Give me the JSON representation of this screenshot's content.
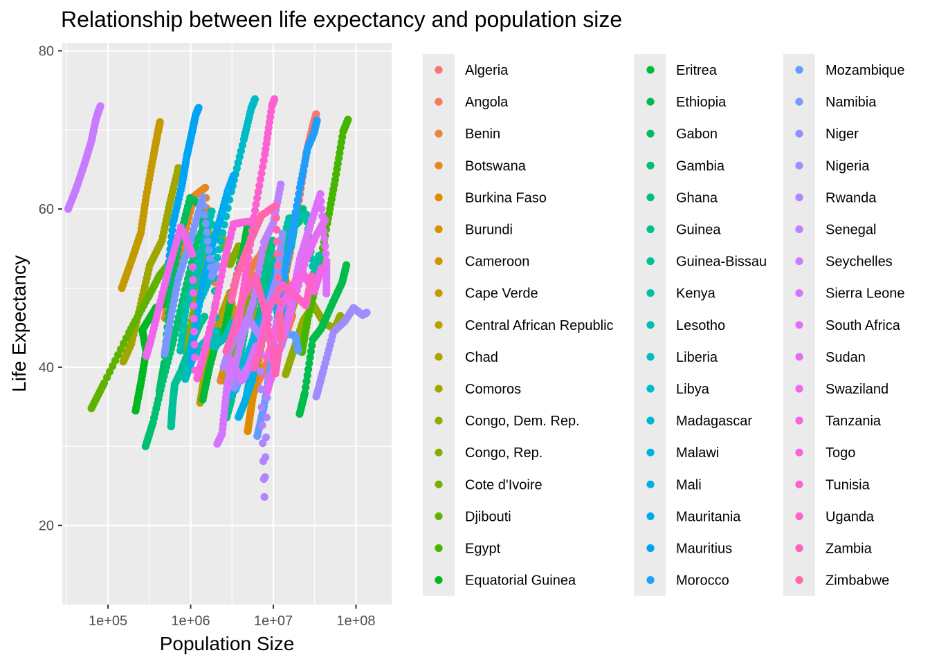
{
  "chart_data": {
    "type": "scatter",
    "title": "Relationship between life expectancy and population size",
    "xlabel": "Population Size",
    "ylabel": "Life Expectancy",
    "x_scale": "log10",
    "xlim": [
      28000,
      270000000
    ],
    "ylim": [
      10,
      81
    ],
    "x_ticks": [
      100000,
      1000000,
      10000000,
      100000000
    ],
    "x_tick_labels": [
      "1e+05",
      "1e+06",
      "1e+07",
      "1e+08"
    ],
    "y_ticks": [
      20,
      40,
      60,
      80
    ],
    "y_tick_labels": [
      "20",
      "40",
      "60",
      "80"
    ],
    "grid": true,
    "legend_position": "right",
    "legend_columns": 3,
    "series": [
      {
        "name": "Algeria",
        "color": "#F8766D",
        "x": [
          11100000,
          13000000,
          16000000,
          20000000,
          25000000,
          30000000,
          33000000
        ],
        "y": [
          47.5,
          50.2,
          54.5,
          60.4,
          67.0,
          70.5,
          72.0
        ]
      },
      {
        "name": "Angola",
        "color": "#F37B59",
        "x": [
          5300000,
          6200000,
          7800000,
          9800000,
          12000000,
          15000000,
          17000000
        ],
        "y": [
          35.9,
          37.5,
          40.0,
          41.8,
          42.5,
          44.9,
          46.5
        ]
      },
      {
        "name": "Benin",
        "color": "#ED8141",
        "x": [
          2300000,
          2600000,
          3300000,
          4300000,
          5600000,
          7000000,
          8700000
        ],
        "y": [
          38.3,
          40.1,
          44.1,
          48.9,
          52.9,
          54.2,
          56.2
        ]
      },
      {
        "name": "Botswana",
        "color": "#E7861B",
        "x": [
          490000,
          560000,
          800000,
          1100000,
          1500000,
          1800000,
          2000000
        ],
        "y": [
          46.2,
          49.2,
          55.7,
          61.6,
          62.7,
          51.0,
          50.7
        ]
      },
      {
        "name": "Burkina Faso",
        "color": "#DF8C00",
        "x": [
          4900000,
          5400000,
          6200000,
          7700000,
          10400000,
          12800000,
          14300000
        ],
        "y": [
          31.9,
          34.9,
          39.0,
          44.6,
          50.3,
          50.6,
          52.3
        ]
      },
      {
        "name": "Burundi",
        "color": "#D89000",
        "x": [
          2400000,
          2700000,
          3400000,
          4100000,
          5600000,
          6300000,
          8400000
        ],
        "y": [
          39.0,
          40.5,
          44.1,
          47.5,
          48.2,
          45.3,
          49.6
        ]
      },
      {
        "name": "Cameroon",
        "color": "#CF9400",
        "x": [
          5000000,
          5800000,
          7400000,
          9300000,
          12500000,
          14800000,
          17700000
        ],
        "y": [
          38.5,
          41.4,
          46.0,
          52.3,
          54.3,
          49.9,
          50.4
        ]
      },
      {
        "name": "Cape Verde",
        "color": "#C49A00",
        "x": [
          147000,
          196000,
          250000,
          290000,
          350000,
          400000,
          426000
        ],
        "y": [
          50.0,
          53.7,
          57.0,
          61.6,
          66.4,
          69.6,
          71.0
        ]
      },
      {
        "name": "Central African Republic",
        "color": "#B99E00",
        "x": [
          1300000,
          1500000,
          1900000,
          2400000,
          3000000,
          3700000,
          4400000
        ],
        "y": [
          35.5,
          39.5,
          43.5,
          46.8,
          49.4,
          44.0,
          44.7
        ]
      },
      {
        "name": "Chad",
        "color": "#ADA200",
        "x": [
          2700000,
          3100000,
          3900000,
          4900000,
          6400000,
          8400000,
          10200000
        ],
        "y": [
          38.1,
          41.7,
          45.6,
          49.5,
          51.7,
          51.6,
          50.7
        ]
      },
      {
        "name": "Comoros",
        "color": "#A0A600",
        "x": [
          153000,
          192000,
          250000,
          320000,
          450000,
          560000,
          710000
        ],
        "y": [
          40.7,
          43.0,
          48.0,
          52.9,
          56.0,
          60.7,
          65.2
        ]
      },
      {
        "name": "Congo, Dem. Rep.",
        "color": "#93AA00",
        "x": [
          14100000,
          17500000,
          23000000,
          30600000,
          41700000,
          55400000,
          64600000
        ],
        "y": [
          39.1,
          42.1,
          45.9,
          47.8,
          45.5,
          44.9,
          46.5
        ]
      },
      {
        "name": "Congo, Rep.",
        "color": "#85AD00",
        "x": [
          850000,
          1000000,
          1300000,
          1800000,
          2400000,
          3000000,
          3800000
        ],
        "y": [
          42.1,
          45.2,
          51.6,
          56.7,
          56.4,
          53.0,
          55.3
        ]
      },
      {
        "name": "Cote d'Ivoire",
        "color": "#73B000",
        "x": [
          2900000,
          3500000,
          5500000,
          8800000,
          12800000,
          16300000,
          18000000
        ],
        "y": [
          40.5,
          44.9,
          49.8,
          54.7,
          52.0,
          46.8,
          48.3
        ]
      },
      {
        "name": "Djibouti",
        "color": "#5FB300",
        "x": [
          63000,
          90000,
          180000,
          305000,
          420000,
          580000,
          700000
        ],
        "y": [
          34.8,
          38.0,
          44.4,
          48.8,
          51.6,
          53.4,
          54.8
        ]
      },
      {
        "name": "Egypt",
        "color": "#46B500",
        "x": [
          22200000,
          26000000,
          34000000,
          45000000,
          56000000,
          70000000,
          80000000
        ],
        "y": [
          41.9,
          46.0,
          51.1,
          58.2,
          63.7,
          69.8,
          71.3
        ]
      },
      {
        "name": "Equatorial Guinea",
        "color": "#00B81F",
        "x": [
          216000,
          250000,
          290000,
          260000,
          380000,
          500000,
          550000
        ],
        "y": [
          34.5,
          38.0,
          42.0,
          44.7,
          47.5,
          48.2,
          51.6
        ]
      },
      {
        "name": "Eritrea",
        "color": "#00BA38",
        "x": [
          1400000,
          1700000,
          2200000,
          2500000,
          3100000,
          4400000,
          4900000
        ],
        "y": [
          35.9,
          40.1,
          44.5,
          43.9,
          48.9,
          55.2,
          58.0
        ]
      },
      {
        "name": "Ethiopia",
        "color": "#00BC4D",
        "x": [
          20800000,
          24000000,
          30000000,
          38000000,
          52000000,
          68000000,
          76500000
        ],
        "y": [
          34.1,
          36.7,
          43.5,
          44.9,
          48.1,
          50.7,
          52.9
        ]
      },
      {
        "name": "Gabon",
        "color": "#00BD5F",
        "x": [
          420000,
          480000,
          560000,
          750000,
          985000,
          1300000,
          1450000
        ],
        "y": [
          37.0,
          40.5,
          48.7,
          56.6,
          61.4,
          60.5,
          56.7
        ]
      },
      {
        "name": "Gambia",
        "color": "#00BF6F",
        "x": [
          285000,
          350000,
          460000,
          620000,
          860000,
          1200000,
          1700000
        ],
        "y": [
          30.0,
          33.0,
          38.3,
          43.5,
          49.8,
          55.9,
          59.4
        ]
      },
      {
        "name": "Ghana",
        "color": "#00C07D",
        "x": [
          5600000,
          6800000,
          8800000,
          11400000,
          16300000,
          20500000,
          22900000
        ],
        "y": [
          43.1,
          46.7,
          51.8,
          53.7,
          57.5,
          58.4,
          60.0
        ]
      },
      {
        "name": "Guinea",
        "color": "#00C18B",
        "x": [
          2700000,
          3100000,
          3900000,
          4700000,
          6100000,
          8800000,
          9900000
        ],
        "y": [
          33.6,
          35.8,
          40.8,
          45.6,
          48.6,
          53.7,
          56.0
        ]
      },
      {
        "name": "Guinea-Bissau",
        "color": "#00C098",
        "x": [
          580000,
          600000,
          640000,
          750000,
          1050000,
          1300000,
          1470000
        ],
        "y": [
          32.5,
          34.9,
          37.8,
          39.3,
          43.3,
          45.5,
          46.4
        ]
      },
      {
        "name": "Kenya",
        "color": "#00BFA4",
        "x": [
          6500000,
          7900000,
          11400000,
          15500000,
          25000000,
          31400000,
          35600000
        ],
        "y": [
          42.3,
          46.8,
          53.6,
          58.8,
          59.3,
          50.9,
          54.1
        ]
      },
      {
        "name": "Lesotho",
        "color": "#00BEB0",
        "x": [
          750000,
          880000,
          1100000,
          1340000,
          1800000,
          2050000,
          2010000
        ],
        "y": [
          42.1,
          47.7,
          50.5,
          54.4,
          59.7,
          44.6,
          42.6
        ]
      },
      {
        "name": "Liberia",
        "color": "#00BDBC",
        "x": [
          860000,
          1000000,
          1300000,
          1700000,
          1900000,
          2660000,
          3200000
        ],
        "y": [
          38.5,
          40.5,
          42.6,
          43.8,
          42.6,
          43.8,
          45.7
        ]
      },
      {
        "name": "Libya",
        "color": "#00BBC7",
        "x": [
          1000000,
          1300000,
          2000000,
          3100000,
          4400000,
          5400000,
          6000000
        ],
        "y": [
          42.7,
          48.4,
          52.8,
          62.2,
          68.8,
          72.7,
          73.9
        ]
      },
      {
        "name": "Madagascar",
        "color": "#00B7D1",
        "x": [
          4800000,
          5700000,
          7100000,
          9200000,
          12200000,
          16500000,
          19100000
        ],
        "y": [
          36.7,
          40.8,
          44.9,
          47.8,
          51.6,
          55.4,
          59.4
        ]
      },
      {
        "name": "Malawi",
        "color": "#00B4DB",
        "x": [
          2900000,
          3500000,
          4700000,
          6500000,
          10300000,
          11800000,
          13300000
        ],
        "y": [
          36.3,
          37.2,
          41.0,
          45.2,
          49.4,
          45.0,
          48.3
        ]
      },
      {
        "name": "Mali",
        "color": "#00AFE5",
        "x": [
          3800000,
          4400000,
          5600000,
          7000000,
          8400000,
          10600000,
          12000000
        ],
        "y": [
          33.7,
          35.3,
          38.5,
          43.9,
          48.4,
          51.8,
          54.5
        ]
      },
      {
        "name": "Mauritania",
        "color": "#00AAEE",
        "x": [
          1000000,
          1100000,
          1400000,
          1800000,
          2200000,
          2800000,
          3300000
        ],
        "y": [
          40.5,
          44.2,
          50.8,
          55.3,
          58.2,
          62.2,
          64.2
        ]
      },
      {
        "name": "Mauritius",
        "color": "#00A4F5",
        "x": [
          516000,
          610000,
          780000,
          900000,
          1040000,
          1150000,
          1250000
        ],
        "y": [
          50.9,
          58.1,
          62.9,
          66.7,
          69.7,
          71.9,
          72.8
        ]
      },
      {
        "name": "Morocco",
        "color": "#1F9EFB",
        "x": [
          9900000,
          12000000,
          16000000,
          21000000,
          26000000,
          31000000,
          33700000
        ],
        "y": [
          42.9,
          47.9,
          55.7,
          62.7,
          67.7,
          69.6,
          71.2
        ]
      },
      {
        "name": "Mozambique",
        "color": "#619CFF",
        "x": [
          6400000,
          7700000,
          9400000,
          12600000,
          13200000,
          18500000,
          19900000
        ],
        "y": [
          31.3,
          35.0,
          40.5,
          42.8,
          44.3,
          44.0,
          42.1
        ]
      },
      {
        "name": "Namibia",
        "color": "#7A97FF",
        "x": [
          485000,
          550000,
          710000,
          1000000,
          1400000,
          1800000,
          2050000
        ],
        "y": [
          41.7,
          45.2,
          51.2,
          56.1,
          61.5,
          51.5,
          52.9
        ]
      },
      {
        "name": "Niger",
        "color": "#8E91FF",
        "x": [
          3400000,
          4100000,
          5400000,
          6800000,
          8400000,
          11100000,
          12900000
        ],
        "y": [
          37.4,
          39.0,
          40.5,
          42.6,
          47.4,
          51.3,
          56.9
        ]
      },
      {
        "name": "Nigeria",
        "color": "#A08BFF",
        "x": [
          33100000,
          39800000,
          53700000,
          73000000,
          93400000,
          119900000,
          135000000
        ],
        "y": [
          36.3,
          39.4,
          44.5,
          45.8,
          47.5,
          46.6,
          46.9
        ]
      },
      {
        "name": "Rwanda",
        "color": "#B085FF",
        "x": [
          2500000,
          2900000,
          3800000,
          5000000,
          6800000,
          7800000,
          8900000
        ],
        "y": [
          40.0,
          42.0,
          45.0,
          46.2,
          44.0,
          23.6,
          46.2
        ]
      },
      {
        "name": "Senegal",
        "color": "#BD80FF",
        "x": [
          2800000,
          3300000,
          4300000,
          5700000,
          7700000,
          10000000,
          12300000
        ],
        "y": [
          37.3,
          39.3,
          44.2,
          48.3,
          55.8,
          58.2,
          63.1
        ]
      },
      {
        "name": "Seychelles",
        "color": "#C97BFF",
        "x": [
          33000,
          41000,
          52000,
          63000,
          71000,
          77000,
          81000
        ],
        "y": [
          60.0,
          62.5,
          65.7,
          68.6,
          71.2,
          72.4,
          73.0
        ]
      },
      {
        "name": "Sierra Leone",
        "color": "#D575FE",
        "x": [
          2100000,
          2400000,
          2700000,
          3100000,
          4100000,
          4600000,
          6100000
        ],
        "y": [
          30.3,
          31.6,
          36.8,
          40.9,
          38.3,
          39.0,
          42.6
        ]
      },
      {
        "name": "South Africa",
        "color": "#DF70F9",
        "x": [
          14300000,
          17000000,
          21000000,
          27000000,
          37000000,
          44000000,
          43900000
        ],
        "y": [
          45.0,
          49.0,
          53.7,
          57.4,
          61.9,
          53.4,
          49.3
        ]
      },
      {
        "name": "Sudan",
        "color": "#E76BF3",
        "x": [
          8500000,
          10000000,
          12900000,
          17100000,
          24700000,
          32000000,
          42300000
        ],
        "y": [
          37.0,
          39.6,
          43.5,
          47.8,
          53.6,
          56.4,
          58.6
        ]
      },
      {
        "name": "Swaziland",
        "color": "#EF67EB",
        "x": [
          290000,
          330000,
          420000,
          550000,
          760000,
          1050000,
          1130000
        ],
        "y": [
          41.4,
          43.4,
          47.8,
          52.6,
          57.7,
          54.3,
          39.6
        ]
      },
      {
        "name": "Tanzania",
        "color": "#F564E3",
        "x": [
          8300000,
          9700000,
          12300000,
          17100000,
          23000000,
          31300000,
          38100000
        ],
        "y": [
          41.2,
          42.9,
          47.6,
          50.4,
          51.8,
          49.6,
          52.5
        ]
      },
      {
        "name": "Togo",
        "color": "#FA62DB",
        "x": [
          1200000,
          1400000,
          1900000,
          2500000,
          3300000,
          4800000,
          5700000
        ],
        "y": [
          38.6,
          41.2,
          46.8,
          52.9,
          58.1,
          58.4,
          58.4
        ]
      },
      {
        "name": "Tunisia",
        "color": "#FD61D1",
        "x": [
          3500000,
          4000000,
          4700000,
          6000000,
          7900000,
          9600000,
          10300000
        ],
        "y": [
          44.6,
          47.1,
          52.1,
          59.8,
          66.9,
          73.0,
          73.9
        ]
      },
      {
        "name": "Uganda",
        "color": "#FF62C5",
        "x": [
          5800000,
          6900000,
          8900000,
          12900000,
          17300000,
          24700000,
          29200000
        ],
        "y": [
          39.9,
          42.6,
          47.6,
          50.4,
          49.3,
          47.8,
          51.5
        ]
      },
      {
        "name": "Zambia",
        "color": "#FF63B9",
        "x": [
          2700000,
          3200000,
          4400000,
          6100000,
          8400000,
          10600000,
          11700000
        ],
        "y": [
          42.0,
          44.1,
          49.0,
          51.4,
          46.1,
          39.2,
          42.4
        ]
      },
      {
        "name": "Zimbabwe",
        "color": "#FF66AC",
        "x": [
          3100000,
          3600000,
          5100000,
          7200000,
          10700000,
          11900000,
          12300000
        ],
        "y": [
          48.5,
          51.5,
          55.6,
          59.2,
          60.4,
          46.8,
          43.5
        ]
      }
    ]
  }
}
